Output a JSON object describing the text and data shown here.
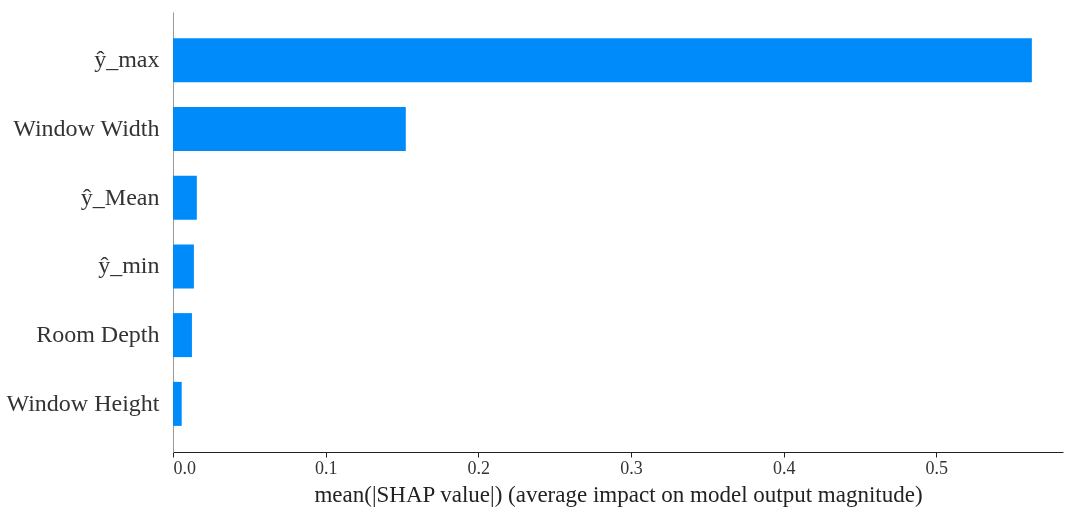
{
  "chart_data": {
    "type": "bar",
    "orientation": "horizontal",
    "categories": [
      "ŷ_max",
      "Window Width",
      "ŷ_Mean",
      "ŷ_min",
      "Room Depth",
      "Window Height"
    ],
    "values": [
      0.5626,
      0.1525,
      0.0156,
      0.0137,
      0.0124,
      0.0057
    ],
    "color": "#008bfb",
    "xlabel": "mean(|SHAP value|) (average impact on model output magnitude)",
    "xlim": [
      0,
      0.583
    ],
    "xticks": [
      {
        "value": 0,
        "label": "0.0"
      },
      0.1,
      0.2,
      0.3,
      0.4,
      0.5
    ],
    "grid": false
  }
}
